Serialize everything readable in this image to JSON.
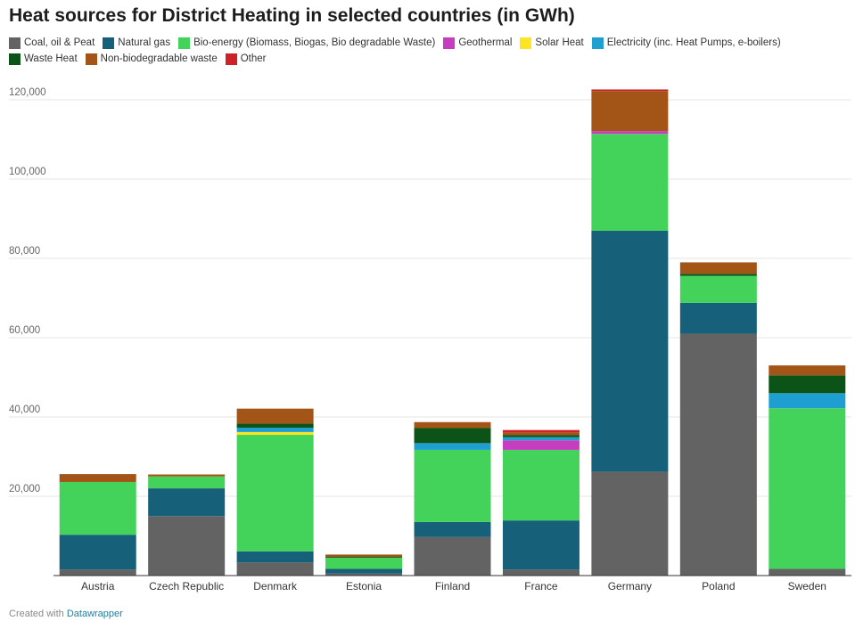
{
  "title": "Heat sources for District Heating in selected countries (in GWh)",
  "footer": {
    "prefix": "Created with",
    "link": "Datawrapper"
  },
  "chart_data": {
    "type": "bar",
    "stacked": true,
    "title": "Heat sources for District Heating in selected countries (in GWh)",
    "categories": [
      "Austria",
      "Czech Republic",
      "Denmark",
      "Estonia",
      "Finland",
      "France",
      "Germany",
      "Poland",
      "Sweden"
    ],
    "ylim": [
      0,
      125000
    ],
    "yticks": [
      20000,
      40000,
      60000,
      80000,
      100000,
      120000
    ],
    "ytick_labels": [
      "20,000",
      "40,000",
      "60,000",
      "80,000",
      "100,000",
      "120,000"
    ],
    "grid": true,
    "legend_position": "top-left",
    "series": [
      {
        "name": "Coal, oil & Peat",
        "color": "#636363",
        "values": [
          1500,
          15000,
          3300,
          500,
          9700,
          1500,
          26200,
          61000,
          1700
        ]
      },
      {
        "name": "Natural gas",
        "color": "#17607a",
        "values": [
          8800,
          7000,
          2800,
          1200,
          3800,
          12400,
          60800,
          7800,
          0
        ]
      },
      {
        "name": "Bio-energy (Biomass, Biogas, Bio degradable Waste)",
        "color": "#43d25a",
        "values": [
          13300,
          3000,
          29400,
          2800,
          18200,
          17800,
          24400,
          6800,
          40500
        ]
      },
      {
        "name": "Geothermal",
        "color": "#c73dbf",
        "values": [
          0,
          0,
          0,
          0,
          0,
          2400,
          700,
          0,
          0
        ]
      },
      {
        "name": "Solar Heat",
        "color": "#ffe421",
        "values": [
          0,
          0,
          700,
          0,
          0,
          0,
          0,
          0,
          0
        ]
      },
      {
        "name": "Electricity (inc. Heat Pumps, e-boilers)",
        "color": "#1f9fcf",
        "values": [
          0,
          0,
          1100,
          0,
          1700,
          800,
          0,
          0,
          3800
        ]
      },
      {
        "name": "Waste Heat",
        "color": "#0b5317",
        "values": [
          0,
          0,
          1000,
          200,
          3800,
          500,
          0,
          500,
          4500
        ]
      },
      {
        "name": "Non-biodegradable waste",
        "color": "#a25517",
        "values": [
          2000,
          500,
          3800,
          600,
          1500,
          700,
          10100,
          2900,
          2500
        ]
      },
      {
        "name": "Other",
        "color": "#cf2027",
        "values": [
          0,
          0,
          0,
          0,
          0,
          600,
          400,
          0,
          0
        ]
      }
    ]
  }
}
